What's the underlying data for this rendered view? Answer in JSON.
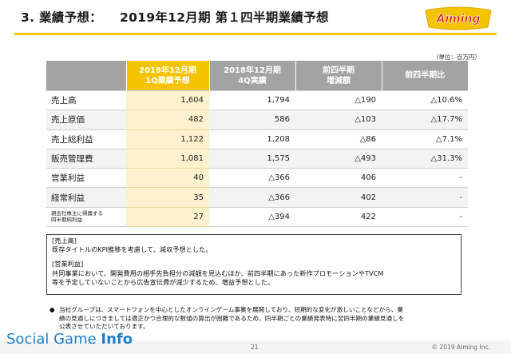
{
  "header": {
    "section": "3. 業績予想：",
    "subtitle": "2019年12月期 第１四半期業績予想",
    "logo_text": "Aiming",
    "unit": "（単位：百万円）"
  },
  "colors": {
    "accent": "#f5c400",
    "header_gray": "#a3a3a3",
    "highlight_cell": "#fdf2cd",
    "brand_blue": "#1f80c8"
  },
  "table": {
    "columns": [
      {
        "line1": "2019年12月期",
        "line2": "1Q業績予想"
      },
      {
        "line1": "2018年12月期",
        "line2": "4Q実績"
      },
      {
        "line1": "前四半期",
        "line2": "増減額"
      },
      {
        "line1": "前四半期比",
        "line2": ""
      }
    ],
    "rows": [
      {
        "label": "売上高",
        "label2": "",
        "forecast": "1,604",
        "actual": "1,794",
        "diff": "△190",
        "ratio": "△10.6%"
      },
      {
        "label": "売上原価",
        "label2": "",
        "forecast": "482",
        "actual": "586",
        "diff": "△103",
        "ratio": "△17.7%"
      },
      {
        "label": "売上総利益",
        "label2": "",
        "forecast": "1,122",
        "actual": "1,208",
        "diff": "△86",
        "ratio": "△7.1%"
      },
      {
        "label": "販売管理費",
        "label2": "",
        "forecast": "1,081",
        "actual": "1,575",
        "diff": "△493",
        "ratio": "△31.3%"
      },
      {
        "label": "営業利益",
        "label2": "",
        "forecast": "40",
        "actual": "△366",
        "diff": "406",
        "ratio": "-"
      },
      {
        "label": "経常利益",
        "label2": "",
        "forecast": "35",
        "actual": "△366",
        "diff": "402",
        "ratio": "-"
      },
      {
        "label": "親会社株主に帰属する",
        "label2": "四半期純利益",
        "forecast": "27",
        "actual": "△394",
        "diff": "422",
        "ratio": "-"
      }
    ]
  },
  "notes": {
    "h1": "[売上高]",
    "t1": "既存タイトルのKPI推移を考慮して、減収予想とした。",
    "h2": "[営業利益]",
    "t2a": "共同事業において、開発費用の相手先負担分の減額を見込むほか、前四半期にあった新作プロモーションやTVCM",
    "t2b": "等を予定していないことから広告宣伝費が減少するため、増益予想とした。"
  },
  "disclaimer": {
    "bullet": "●",
    "line1": "当社グループは、スマートフォンを中心としたオンラインゲーム事業を展開しており、短期的な変化が激しいことなどから、業",
    "line2": "績の見通しにつきましては適正かつ合理的な数値の算出が困難であるため、四半期ごとの業績発表時に翌四半期の業績見通しを",
    "line3": "公表させていただいております。"
  },
  "footer": {
    "watermark_a": "Social Game ",
    "watermark_b": "Info",
    "page": "21",
    "copyright": "© 2019 Aiming Inc."
  }
}
